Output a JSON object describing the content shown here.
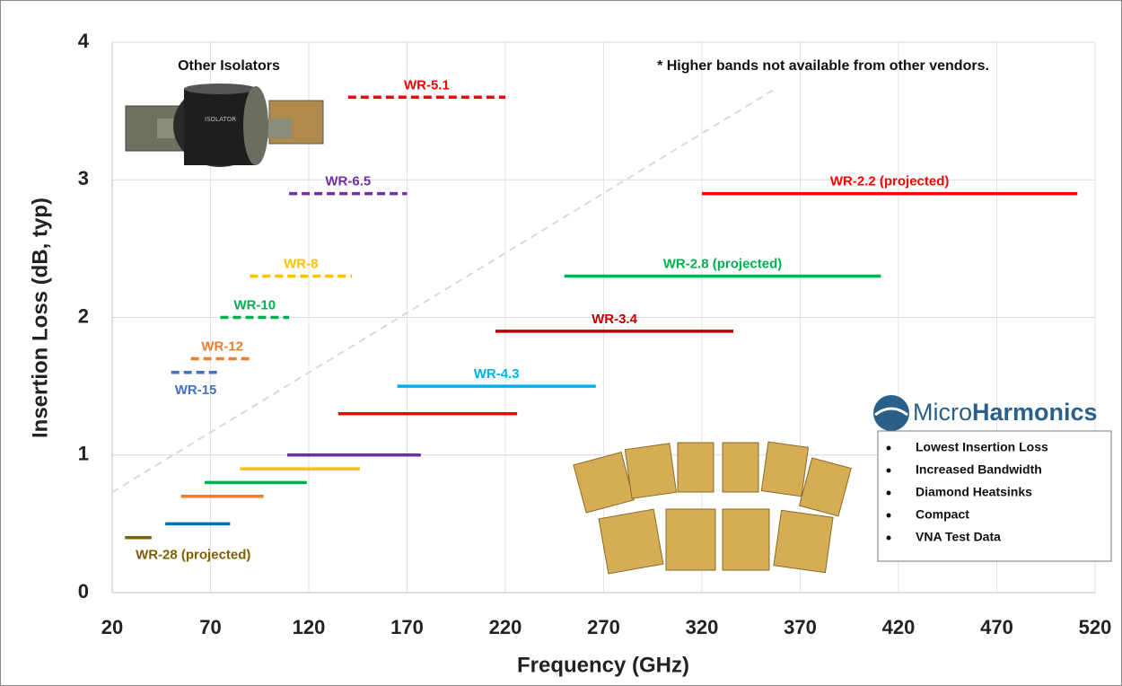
{
  "chart_data": {
    "type": "range-line",
    "xlabel": "Frequency (GHz)",
    "ylabel": "Insertion Loss (dB, typ)",
    "xlim": [
      20,
      520
    ],
    "ylim": [
      0,
      4
    ],
    "xticks": [
      20,
      70,
      120,
      170,
      220,
      270,
      320,
      370,
      420,
      470,
      520
    ],
    "yticks": [
      0,
      1,
      2,
      3,
      4
    ],
    "grid": true,
    "annotations": {
      "other": "Other Isolators",
      "note": "* Higher bands not available from other vendors.",
      "brand_light": "Micro",
      "brand_bold": "Harmonics",
      "features": [
        "Lowest Insertion Loss",
        "Increased Bandwidth",
        "Diamond Heatsinks",
        "Compact",
        "VNA Test Data"
      ]
    },
    "reference_line": {
      "color": "#d9d9d9",
      "dashed": true,
      "x": [
        20,
        356
      ],
      "values": [
        0.73,
        3.65
      ]
    },
    "series": [
      {
        "name": "WR-28 (projected)",
        "color": "#7f6000",
        "dashed": false,
        "x": [
          26.5,
          40
        ],
        "values": [
          0.4,
          0.4
        ]
      },
      {
        "name": null,
        "color": "#0070c0",
        "dashed": false,
        "x": [
          47,
          80
        ],
        "values": [
          0.5,
          0.5
        ]
      },
      {
        "name": null,
        "color": "#ed7d31",
        "dashed": false,
        "x": [
          55,
          97
        ],
        "values": [
          0.7,
          0.7
        ]
      },
      {
        "name": null,
        "color": "#00b050",
        "dashed": false,
        "x": [
          67,
          119
        ],
        "values": [
          0.8,
          0.8
        ]
      },
      {
        "name": null,
        "color": "#ffc000",
        "dashed": false,
        "x": [
          85,
          146
        ],
        "values": [
          0.9,
          0.9
        ]
      },
      {
        "name": null,
        "color": "#7030a0",
        "dashed": false,
        "x": [
          109,
          177
        ],
        "values": [
          1.0,
          1.0
        ]
      },
      {
        "name": "WR-15",
        "color": "#4472c4",
        "dashed": true,
        "x": [
          50,
          75
        ],
        "values": [
          1.6,
          1.6
        ]
      },
      {
        "name": "WR-12",
        "color": "#ed7d31",
        "dashed": true,
        "x": [
          60,
          92
        ],
        "values": [
          1.7,
          1.7
        ]
      },
      {
        "name": "WR-10",
        "color": "#00b050",
        "dashed": true,
        "x": [
          75,
          110
        ],
        "values": [
          2.0,
          2.0
        ]
      },
      {
        "name": "WR-8",
        "color": "#ffc000",
        "dashed": true,
        "x": [
          90,
          142
        ],
        "values": [
          2.3,
          2.3
        ]
      },
      {
        "name": "WR-6.5",
        "color": "#7030a0",
        "dashed": true,
        "x": [
          110,
          170
        ],
        "values": [
          2.9,
          2.9
        ]
      },
      {
        "name": "WR-5.1",
        "color": "#ff0000",
        "dashed": true,
        "x": [
          140,
          220
        ],
        "values": [
          3.6,
          3.6
        ]
      },
      {
        "name": null,
        "color": "#ff0000",
        "dashed": false,
        "x": [
          135,
          226
        ],
        "values": [
          1.3,
          1.3
        ]
      },
      {
        "name": "WR-4.3",
        "color": "#00b0f0",
        "dashed": false,
        "x": [
          165,
          266
        ],
        "values": [
          1.5,
          1.5
        ]
      },
      {
        "name": "WR-3.4",
        "color": "#c00000",
        "dashed": false,
        "x": [
          215,
          336
        ],
        "values": [
          1.9,
          1.9
        ]
      },
      {
        "name": "WR-2.8 (projected)",
        "color": "#00b050",
        "dashed": false,
        "x": [
          250,
          411
        ],
        "values": [
          2.3,
          2.3
        ]
      },
      {
        "name": "WR-2.2 (projected)",
        "color": "#ff0000",
        "dashed": false,
        "x": [
          320,
          511
        ],
        "values": [
          2.9,
          2.9
        ]
      }
    ]
  }
}
